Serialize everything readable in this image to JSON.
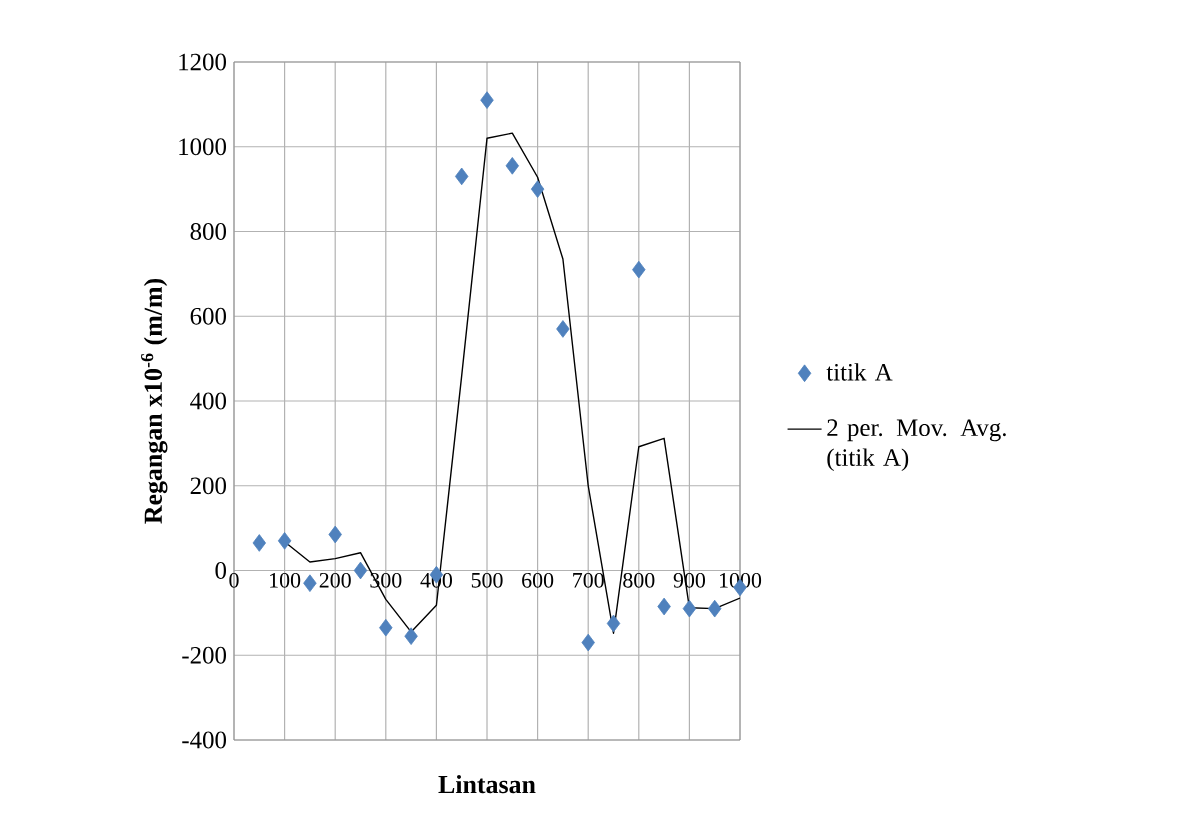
{
  "chart_data": {
    "type": "scatter",
    "xlabel": "Lintasan",
    "ylabel": "Regangan x10$^{-6}$ (m/m)",
    "xlim": [
      0,
      1000
    ],
    "xticks": [
      0,
      100,
      200,
      300,
      400,
      500,
      600,
      700,
      800,
      900,
      1000
    ],
    "ylim": [
      -400,
      1200
    ],
    "yticks": [
      -400,
      -200,
      0,
      200,
      400,
      600,
      800,
      1000,
      1200
    ],
    "grid": true,
    "legend": "right",
    "series": [
      {
        "name": "titik A",
        "color": "#4f81bd",
        "marker": "diamond",
        "x": [
          50,
          100,
          150,
          200,
          250,
          300,
          350,
          400,
          450,
          500,
          550,
          600,
          650,
          700,
          750,
          800,
          850,
          900,
          950,
          1000
        ],
        "values": [
          65,
          70,
          -30,
          85,
          0,
          -135,
          -155,
          -10,
          930,
          1110,
          955,
          900,
          570,
          -170,
          -125,
          710,
          -85,
          -90,
          -90,
          -40
        ]
      },
      {
        "name": "2 per. Mov. Avg. (titik A)",
        "type": "line",
        "color": "#000000",
        "marker": "none",
        "x": [
          100,
          150,
          200,
          250,
          300,
          350,
          400,
          450,
          500,
          550,
          600,
          650,
          700,
          750,
          800,
          850,
          900,
          950,
          1000
        ],
        "values": [
          68,
          20,
          28,
          42,
          -68,
          -145,
          -82,
          460,
          1020,
          1032,
          928,
          735,
          200,
          -148,
          292,
          312,
          -88,
          -90,
          -65
        ]
      }
    ]
  }
}
